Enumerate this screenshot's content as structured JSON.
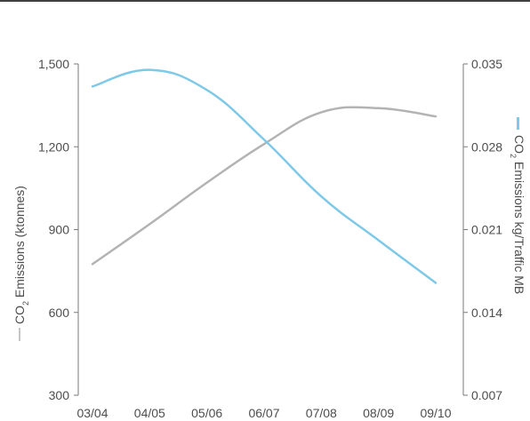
{
  "chart_data": {
    "type": "line",
    "title": "",
    "categories": [
      "03/04",
      "04/05",
      "05/06",
      "06/07",
      "07/08",
      "08/09",
      "09/10"
    ],
    "series": [
      {
        "name": "CO2 Emissions (ktonnes)",
        "axis": "left",
        "color": "#b3b3b3",
        "values": [
          775,
          920,
          1070,
          1210,
          1325,
          1340,
          1310
        ]
      },
      {
        "name": "CO2 Emissions kg/Traffic MB",
        "axis": "right",
        "color": "#7ec8e8",
        "values": [
          0.0331,
          0.0345,
          0.0328,
          0.0286,
          0.0238,
          0.0201,
          0.0165
        ]
      }
    ],
    "y_left": {
      "label_parts": [
        "CO",
        "2",
        " Emissions (ktonnes)"
      ],
      "ticks": [
        "1,500",
        "1,200",
        "900",
        "600",
        "300"
      ],
      "tick_values": [
        1500,
        1200,
        900,
        600,
        300
      ],
      "ylim": [
        300,
        1500
      ]
    },
    "y_right": {
      "label_parts": [
        "CO",
        "2",
        " Emissions kg/Traffic MB"
      ],
      "ticks": [
        "0.035",
        "0.028",
        "0.021",
        "0.014",
        "0.007"
      ],
      "tick_values": [
        0.035,
        0.028,
        0.021,
        0.014,
        0.007
      ],
      "ylim": [
        0.007,
        0.035
      ]
    },
    "grid": false,
    "legend": "in axis titles"
  }
}
